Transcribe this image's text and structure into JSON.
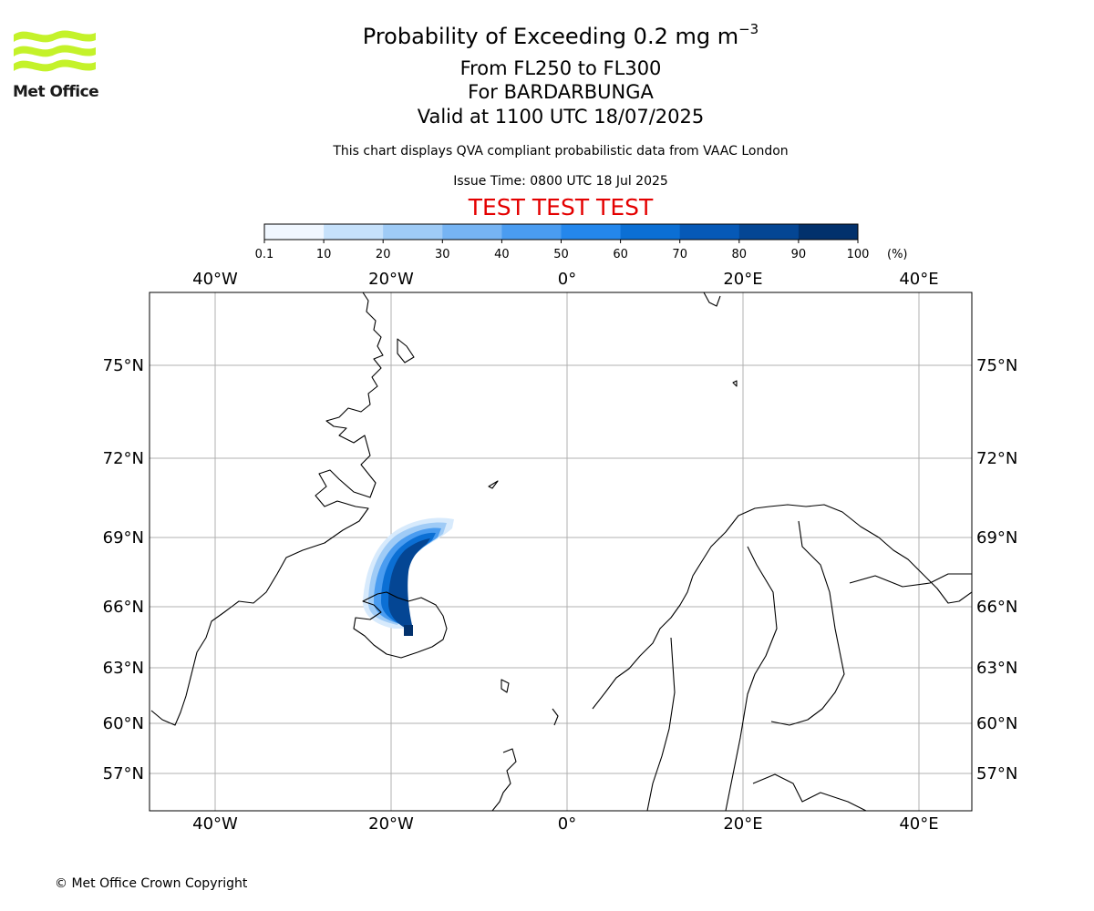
{
  "logo": {
    "text": "Met Office",
    "color": "#c4f22a"
  },
  "header": {
    "title_main": "Probability of Exceeding 0.2 mg m",
    "title_sup": "−3",
    "line_levels": "From FL250 to FL300",
    "line_volcano": "For BARDARBUNGA",
    "line_valid": "Valid at 1100 UTC 18/07/2025",
    "description": "This chart displays QVA compliant probabilistic data from VAAC London",
    "issue_time": "Issue Time: 0800 UTC 18 Jul 2025",
    "test_banner": "TEST TEST TEST",
    "test_color": "#e40000"
  },
  "colorbar": {
    "ticks": [
      "0.1",
      "10",
      "20",
      "30",
      "40",
      "50",
      "60",
      "70",
      "80",
      "90",
      "100"
    ],
    "unit": "(%)",
    "colors": [
      "#f0f7ff",
      "#c6e1fb",
      "#9fcbf6",
      "#76b4f3",
      "#4a9cf0",
      "#2487ec",
      "#0b6fd4",
      "#0659b7",
      "#044694",
      "#02316c"
    ]
  },
  "map": {
    "lon_labels_top": [
      "40°W",
      "20°W",
      "0°",
      "20°E",
      "40°E"
    ],
    "lon_labels_bottom": [
      "40°W",
      "20°W",
      "0°",
      "20°E",
      "40°E"
    ],
    "lat_labels_left": [
      "75°N",
      "72°N",
      "69°N",
      "66°N",
      "63°N",
      "60°N",
      "57°N"
    ],
    "lat_labels_right": [
      "75°N",
      "72°N",
      "69°N",
      "66°N",
      "63°N",
      "60°N",
      "57°N"
    ],
    "gridline_color": "#b0b0b0"
  },
  "footer": {
    "copyright": "© Met Office Crown Copyright"
  }
}
